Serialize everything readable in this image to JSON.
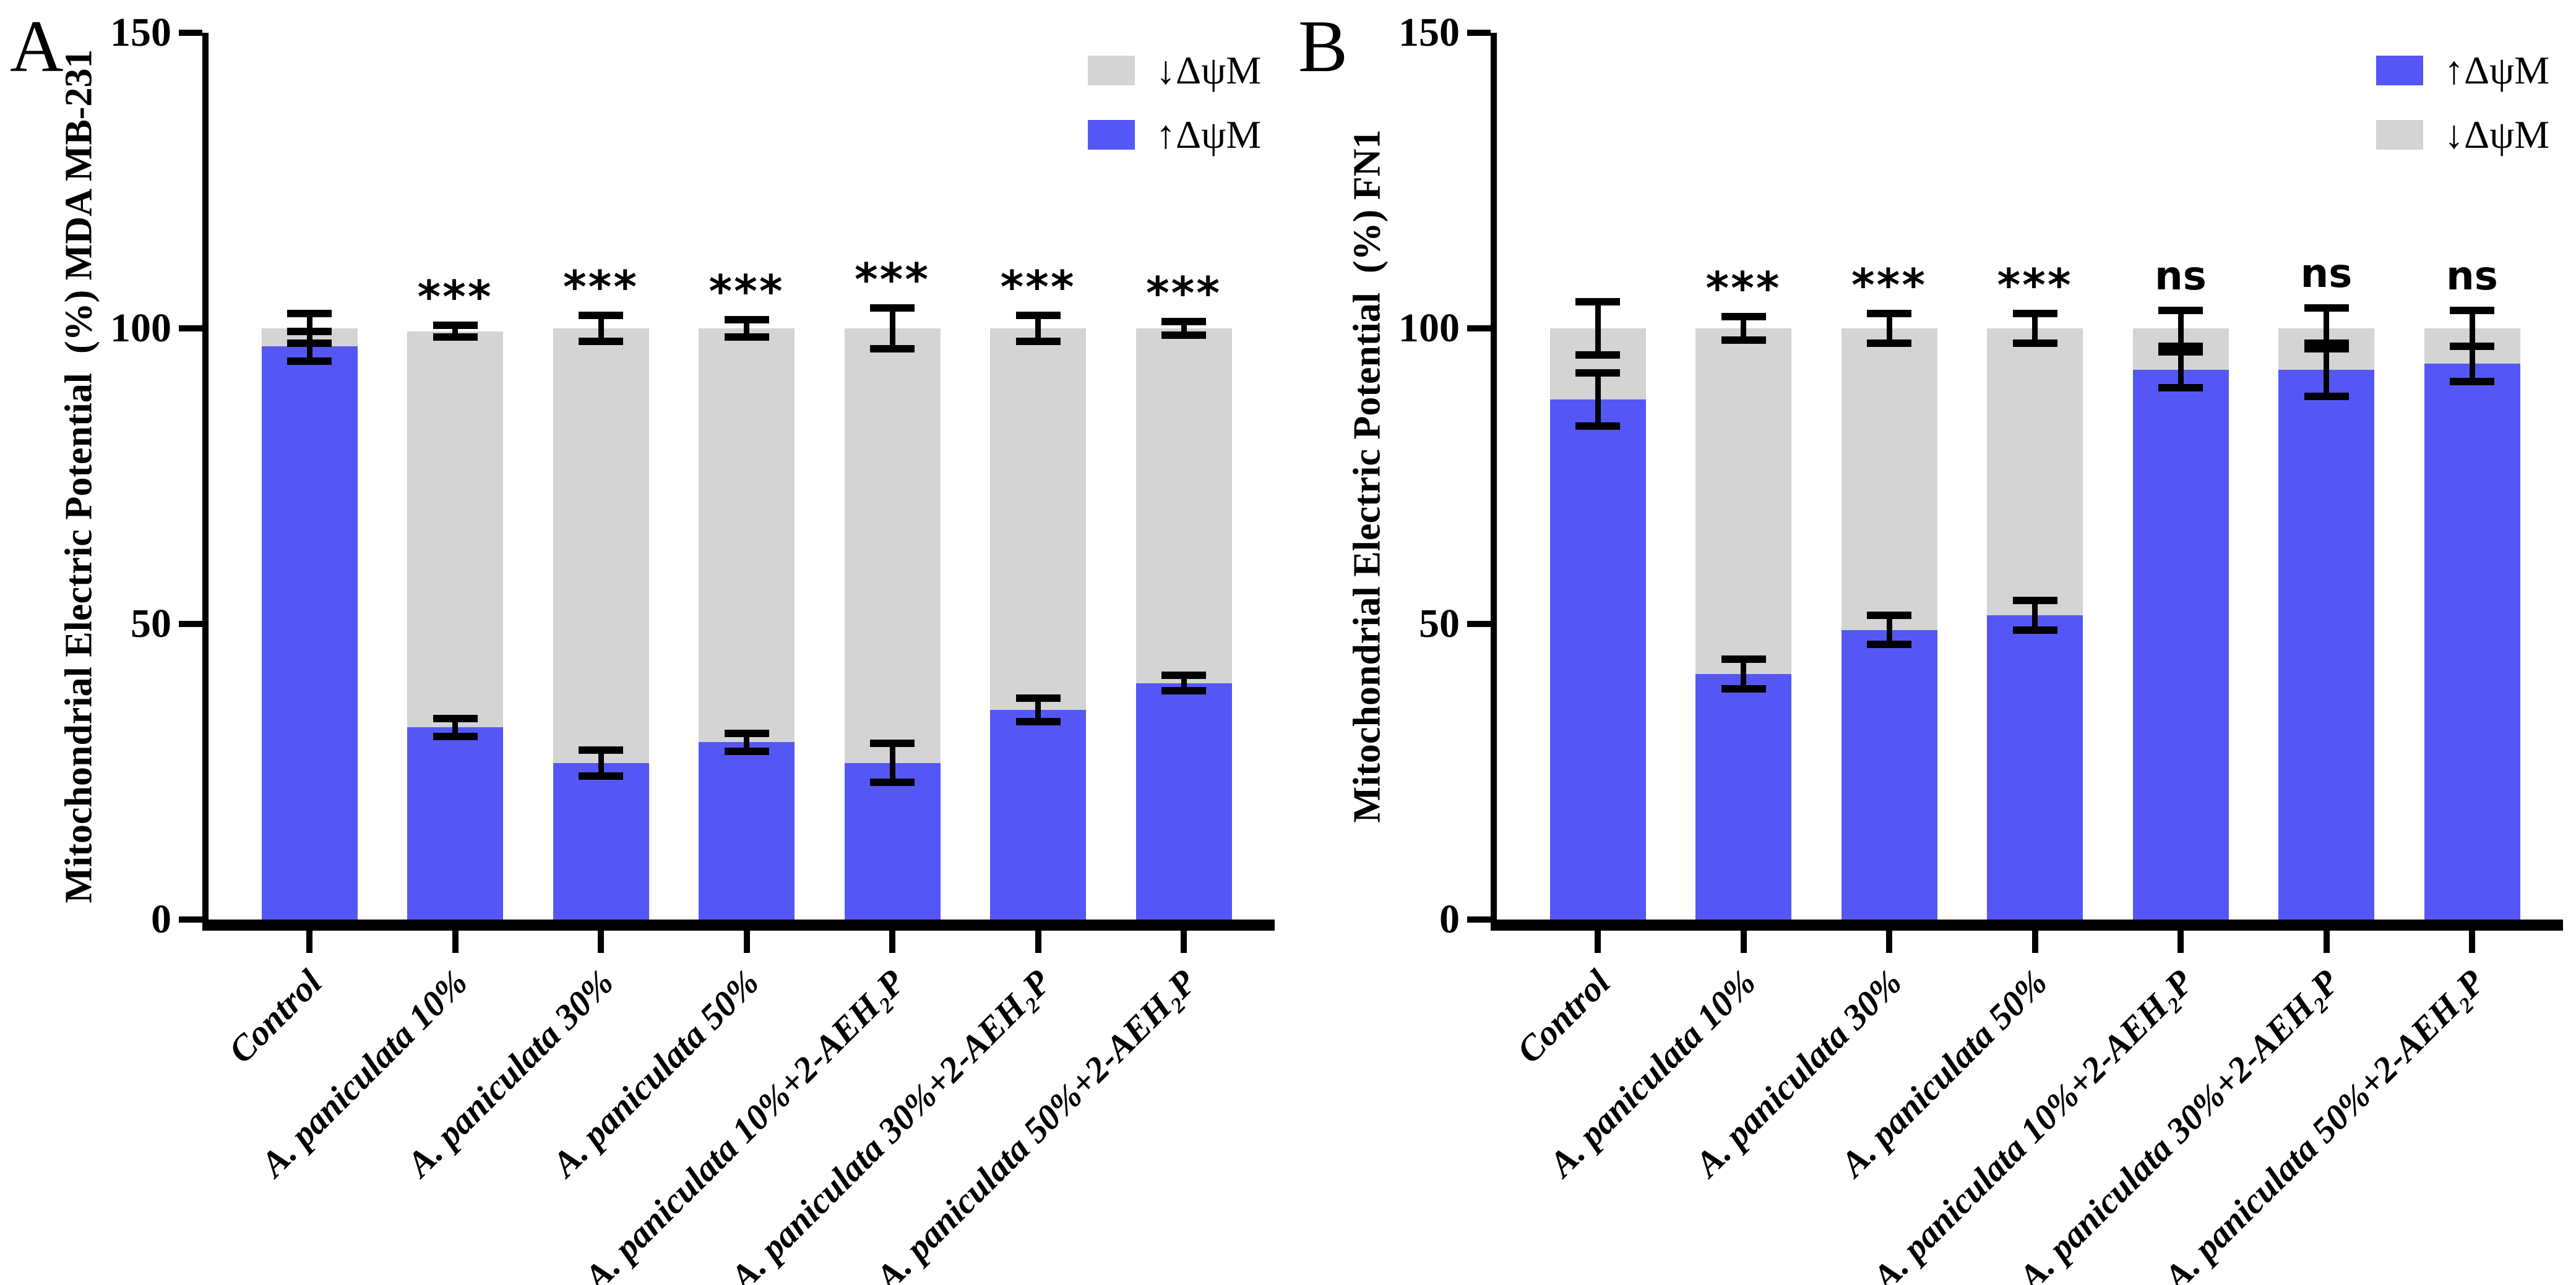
{
  "figure": {
    "background": "#ffffff"
  },
  "colors": {
    "increased_potential_blue": "#5457F5",
    "decreased_potential_gray": "#D4D4D4",
    "axis_black": "#000000"
  },
  "chart_data": [
    {
      "type": "bar",
      "stacked": true,
      "panel_label": "A",
      "ylabel": "Mitochondrial Electric Potential  (%) MDA MB-231",
      "xlabel": "",
      "ylim": [
        0,
        150
      ],
      "yticks": [
        0,
        50,
        100,
        150
      ],
      "grid": false,
      "legend_position": "top-right",
      "legend": [
        {
          "label": "↓ΔψM",
          "series": "decreased",
          "color": "#D4D4D4"
        },
        {
          "label": "↑ΔψM",
          "series": "increased",
          "color": "#5457F5"
        }
      ],
      "categories": [
        "Control",
        "A. paniculata 10%",
        "A. paniculata 30%",
        "A. paniculata 50%",
        "A. paniculata 10%+2-AEH₂P",
        "A. paniculata 30%+2-AEH₂P",
        "A. paniculata 50%+2-AEH₂P"
      ],
      "series": [
        {
          "name": "↑ΔψM",
          "role": "increased",
          "color": "#5457F5",
          "values": [
            97,
            32.5,
            26.5,
            30,
            26.5,
            35.5,
            40
          ],
          "errors": [
            2.5,
            1.5,
            2.2,
            1.5,
            3.3,
            2,
            1.3
          ]
        },
        {
          "name": "↓ΔψM",
          "role": "decreased",
          "color": "#D4D4D4",
          "values": [
            3,
            67,
            73.5,
            70,
            73.5,
            64.5,
            60
          ]
        }
      ],
      "totals": [
        100,
        99.5,
        100,
        100,
        100,
        100,
        100
      ],
      "total_errors": [
        2.5,
        1,
        2.2,
        1.5,
        3.5,
        2.2,
        1.2
      ],
      "significance": [
        "",
        "***",
        "***",
        "***",
        "***",
        "***",
        "***"
      ]
    },
    {
      "type": "bar",
      "stacked": true,
      "panel_label": "B",
      "ylabel": "Mitochondrial Electric Potential  (%) FN1",
      "xlabel": "",
      "ylim": [
        0,
        150
      ],
      "yticks": [
        0,
        50,
        100,
        150
      ],
      "grid": false,
      "legend_position": "top-right",
      "legend": [
        {
          "label": "↑ΔψM",
          "series": "increased",
          "color": "#5457F5"
        },
        {
          "label": "↓ΔψM",
          "series": "decreased",
          "color": "#D4D4D4"
        }
      ],
      "categories": [
        "Control",
        "A. paniculata 10%",
        "A. paniculata 30%",
        "A. paniculata 50%",
        "A. paniculata 10%+2-AEH₂P",
        "A. paniculata 30%+2-AEH₂P",
        "A. paniculata 50%+2-AEH₂P"
      ],
      "series": [
        {
          "name": "↑ΔψM",
          "role": "increased",
          "color": "#5457F5",
          "values": [
            88,
            41.5,
            49,
            51.5,
            93,
            93,
            94
          ],
          "errors": [
            4.5,
            2.5,
            2.5,
            2.5,
            3,
            4.5,
            3
          ]
        },
        {
          "name": "↓ΔψM",
          "role": "decreased",
          "color": "#D4D4D4",
          "values": [
            12,
            58.5,
            51,
            48.5,
            7,
            7,
            6
          ]
        }
      ],
      "totals": [
        100,
        100,
        100,
        100,
        100,
        100,
        100
      ],
      "total_errors": [
        4.5,
        2,
        2.5,
        2.5,
        3,
        3.5,
        3
      ],
      "significance": [
        "",
        "***",
        "***",
        "***",
        "ns",
        "ns",
        "ns"
      ]
    }
  ]
}
